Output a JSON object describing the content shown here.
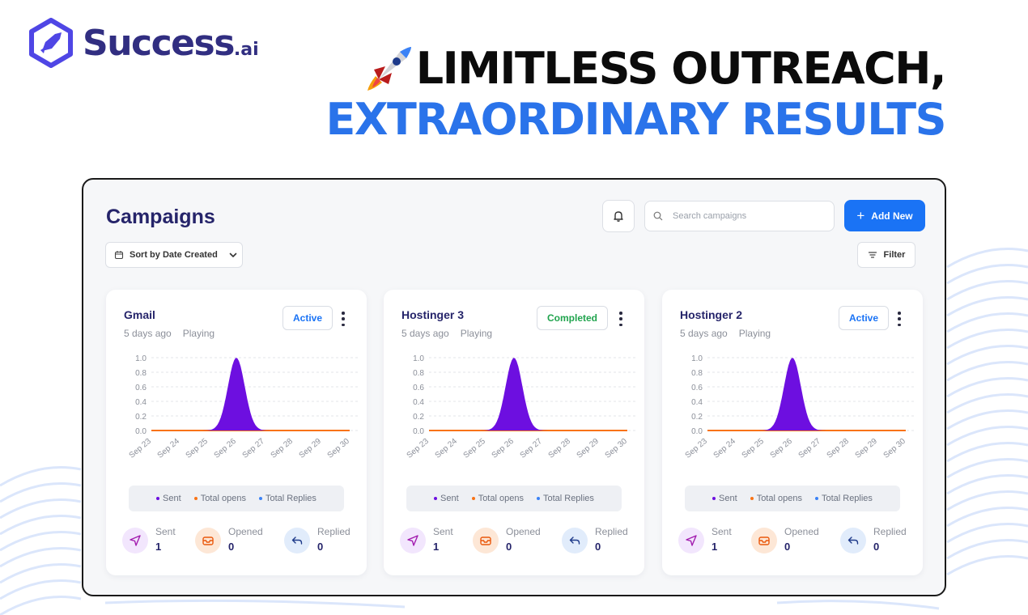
{
  "brand": {
    "name_main": "Success",
    "name_suffix": ".ai",
    "icon": "rocket-logo-icon"
  },
  "headline": {
    "line1": "LIMITLESS OUTREACH,",
    "line2": "EXTRAORDINARY RESULTS",
    "emoji_icon": "rocket-emoji-icon",
    "line1_color": "#0b0b0b",
    "line2_color": "#2a73ea"
  },
  "app": {
    "title": "Campaigns",
    "search_placeholder": "Search campaigns",
    "add_button_label": "Add New",
    "sort_label": "Sort by Date Created",
    "filter_label": "Filter",
    "accent_color": "#1a73f5"
  },
  "campaigns": [
    {
      "name": "Gmail",
      "age": "5 days ago",
      "state": "Playing",
      "status": "Active",
      "status_type": "active",
      "legend": [
        "Sent",
        "Total opens",
        "Total Replies"
      ],
      "stats": [
        {
          "label": "Sent",
          "value": "1"
        },
        {
          "label": "Opened",
          "value": "0"
        },
        {
          "label": "Replied",
          "value": "0"
        }
      ]
    },
    {
      "name": "Hostinger 3",
      "age": "5 days ago",
      "state": "Playing",
      "status": "Completed",
      "status_type": "completed",
      "legend": [
        "Sent",
        "Total opens",
        "Total Replies"
      ],
      "stats": [
        {
          "label": "Sent",
          "value": "1"
        },
        {
          "label": "Opened",
          "value": "0"
        },
        {
          "label": "Replied",
          "value": "0"
        }
      ]
    },
    {
      "name": "Hostinger 2",
      "age": "5 days ago",
      "state": "Playing",
      "status": "Active",
      "status_type": "active",
      "legend": [
        "Sent",
        "Total opens",
        "Total Replies"
      ],
      "stats": [
        {
          "label": "Sent",
          "value": "1"
        },
        {
          "label": "Opened",
          "value": "0"
        },
        {
          "label": "Replied",
          "value": "0"
        }
      ]
    }
  ],
  "chart_data": [
    {
      "type": "area",
      "categories": [
        "Sep 23",
        "Sep 24",
        "Sep 25",
        "Sep 26",
        "Sep 27",
        "Sep 28",
        "Sep 29",
        "Sep 30"
      ],
      "series": [
        {
          "name": "Sent",
          "values": [
            0,
            0,
            0,
            1,
            0,
            0,
            0,
            0
          ],
          "color": "#6d0fe0"
        },
        {
          "name": "Total opens",
          "values": [
            0,
            0,
            0,
            0,
            0,
            0,
            0,
            0
          ],
          "color": "#f97316"
        },
        {
          "name": "Total Replies",
          "values": [
            0,
            0,
            0,
            0,
            0,
            0,
            0,
            0
          ],
          "color": "#3b82f6"
        }
      ],
      "y_ticks": [
        "0.0",
        "0.2",
        "0.4",
        "0.6",
        "0.8",
        "1.0"
      ],
      "ylim": [
        0,
        1
      ],
      "grid": true
    },
    {
      "type": "area",
      "categories": [
        "Sep 23",
        "Sep 24",
        "Sep 25",
        "Sep 26",
        "Sep 27",
        "Sep 28",
        "Sep 29",
        "Sep 30"
      ],
      "series": [
        {
          "name": "Sent",
          "values": [
            0,
            0,
            0,
            1,
            0,
            0,
            0,
            0
          ],
          "color": "#6d0fe0"
        },
        {
          "name": "Total opens",
          "values": [
            0,
            0,
            0,
            0,
            0,
            0,
            0,
            0
          ],
          "color": "#f97316"
        },
        {
          "name": "Total Replies",
          "values": [
            0,
            0,
            0,
            0,
            0,
            0,
            0,
            0
          ],
          "color": "#3b82f6"
        }
      ],
      "y_ticks": [
        "0.0",
        "0.2",
        "0.4",
        "0.6",
        "0.8",
        "1.0"
      ],
      "ylim": [
        0,
        1
      ],
      "grid": true
    },
    {
      "type": "area",
      "categories": [
        "Sep 23",
        "Sep 24",
        "Sep 25",
        "Sep 26",
        "Sep 27",
        "Sep 28",
        "Sep 29",
        "Sep 30"
      ],
      "series": [
        {
          "name": "Sent",
          "values": [
            0,
            0,
            0,
            1,
            0,
            0,
            0,
            0
          ],
          "color": "#6d0fe0"
        },
        {
          "name": "Total opens",
          "values": [
            0,
            0,
            0,
            0,
            0,
            0,
            0,
            0
          ],
          "color": "#f97316"
        },
        {
          "name": "Total Replies",
          "values": [
            0,
            0,
            0,
            0,
            0,
            0,
            0,
            0
          ],
          "color": "#3b82f6"
        }
      ],
      "y_ticks": [
        "0.0",
        "0.2",
        "0.4",
        "0.6",
        "0.8",
        "1.0"
      ],
      "ylim": [
        0,
        1
      ],
      "grid": true
    }
  ]
}
